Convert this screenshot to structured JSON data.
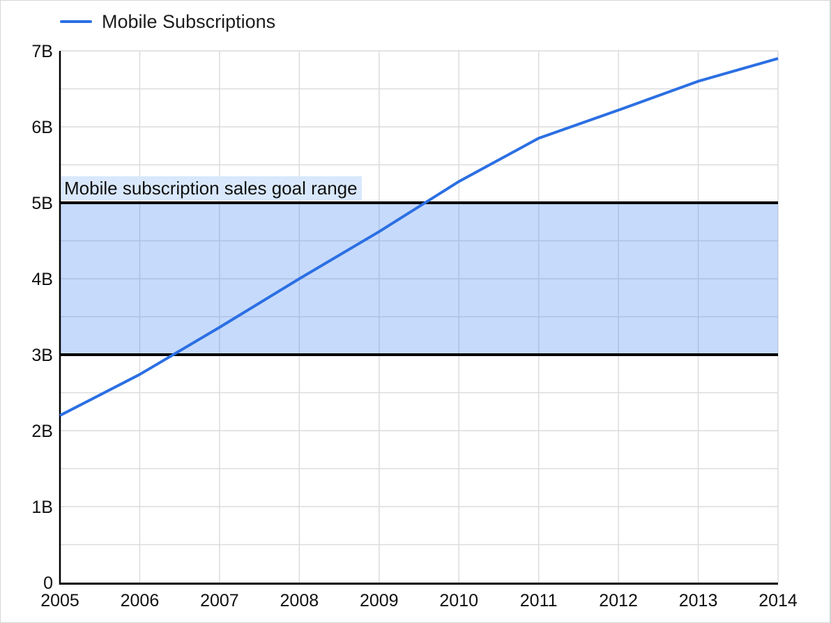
{
  "legend": {
    "label": "Mobile Subscriptions"
  },
  "annotation": {
    "label": "Mobile subscription sales goal range"
  },
  "colors": {
    "line": "#2b6fe3",
    "band_fill": "rgba(66,133,244,0.30)",
    "annotation_bg": "#d9e8fc",
    "band_border": "#000000",
    "gridline": "#dcdcdc",
    "axis_line": "#000000",
    "text": "#111111",
    "chart_border": "#d5d5d5"
  },
  "chart_data": {
    "type": "line",
    "x": [
      "2005",
      "2006",
      "2007",
      "2008",
      "2009",
      "2010",
      "2011",
      "2012",
      "2013",
      "2014"
    ],
    "series": [
      {
        "name": "Mobile Subscriptions",
        "values": [
          2.2,
          2.74,
          3.36,
          4.0,
          4.62,
          5.28,
          5.85,
          6.22,
          6.6,
          6.9
        ],
        "unit": "billions"
      }
    ],
    "title": "",
    "xlabel": "",
    "ylabel": "",
    "ylim": [
      0,
      7
    ],
    "y_ticks": [
      {
        "value": 0,
        "label": "0"
      },
      {
        "value": 1,
        "label": "1B"
      },
      {
        "value": 2,
        "label": "2B"
      },
      {
        "value": 3,
        "label": "3B"
      },
      {
        "value": 4,
        "label": "4B"
      },
      {
        "value": 5,
        "label": "5B"
      },
      {
        "value": 6,
        "label": "6B"
      },
      {
        "value": 7,
        "label": "7B"
      }
    ],
    "y_minor_grid_step": 0.5,
    "grid": true,
    "legend_position": "top-left",
    "goal_band": {
      "from": 3,
      "to": 5,
      "label": "Mobile subscription sales goal range"
    }
  }
}
